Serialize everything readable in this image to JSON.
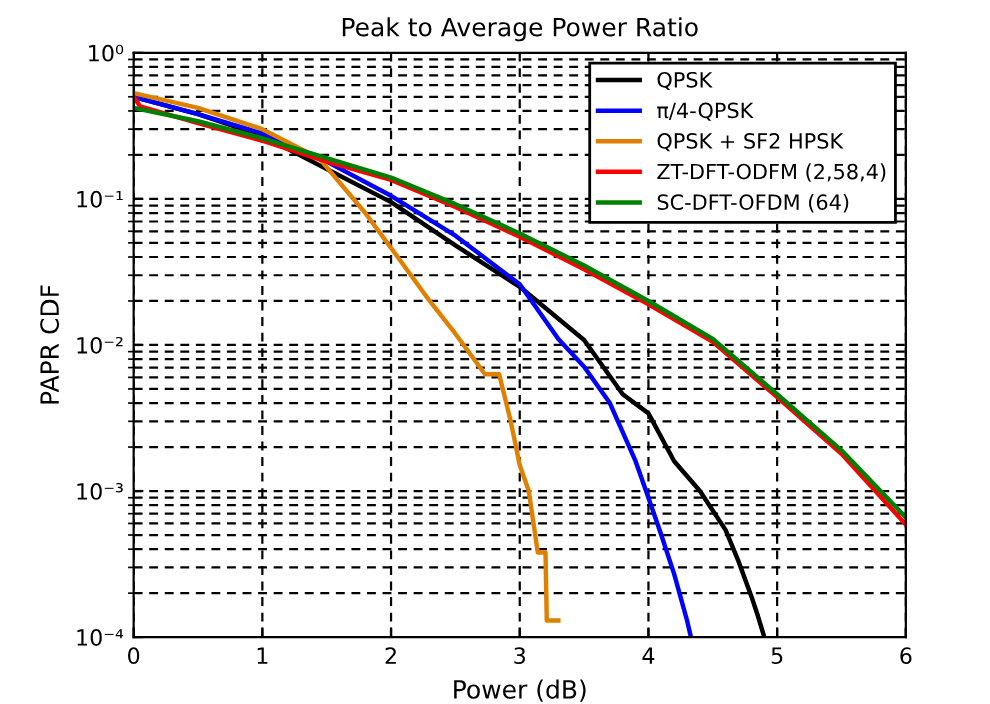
{
  "chart_data": {
    "type": "line",
    "title": "Peak to Average Power Ratio",
    "xlabel": "Power (dB)",
    "ylabel": "PAPR CDF",
    "log": "y",
    "grid": true,
    "legend": "top right",
    "xlim": [
      0,
      6
    ],
    "xticks": [
      0,
      1,
      2,
      3,
      4,
      5,
      6
    ],
    "ylim": [
      0.0001,
      1
    ],
    "yticks": [
      {
        "value": 0.0001,
        "label": "10⁻⁴"
      },
      {
        "value": 0.001,
        "label": "10⁻³"
      },
      {
        "value": 0.01,
        "label": "10⁻²"
      },
      {
        "value": 0.1,
        "label": "10⁻¹"
      },
      {
        "value": 1,
        "label": "10⁰"
      }
    ],
    "series": [
      {
        "name": "QPSK",
        "color": "#000000",
        "x": [
          0,
          0.5,
          1,
          1.5,
          2,
          2.5,
          3,
          3.5,
          3.8,
          4,
          4.2,
          4.4,
          4.6,
          4.7,
          4.8,
          4.85,
          4.9
        ],
        "values": [
          0.5,
          0.38,
          0.27,
          0.16,
          0.095,
          0.048,
          0.025,
          0.0108,
          0.0046,
          0.0034,
          0.0016,
          0.001,
          0.00054,
          0.00033,
          0.00019,
          0.00014,
          0.0001
        ]
      },
      {
        "name": "π/4-QPSK",
        "color": "#0000ff",
        "x": [
          0,
          0.5,
          1,
          1.5,
          2,
          2.5,
          3,
          3.3,
          3.5,
          3.7,
          3.9,
          4,
          4.1,
          4.2,
          4.3,
          4.33
        ],
        "values": [
          0.5,
          0.38,
          0.28,
          0.18,
          0.105,
          0.056,
          0.026,
          0.011,
          0.0071,
          0.004,
          0.0016,
          0.0009,
          0.0005,
          0.00027,
          0.00013,
          0.0001
        ]
      },
      {
        "name": "QPSK + SF2 HPSK",
        "color": "#e08000",
        "x": [
          0,
          0.5,
          1,
          1.44,
          1.8,
          2.07,
          2.3,
          2.48,
          2.73,
          2.84,
          2.93,
          3.0,
          3.07,
          3.14,
          3.2,
          3.21,
          3.3
        ],
        "values": [
          0.53,
          0.42,
          0.3,
          0.19,
          0.08,
          0.038,
          0.02,
          0.0126,
          0.0063,
          0.0063,
          0.003,
          0.0015,
          0.001,
          0.00038,
          0.00038,
          0.00013,
          0.00013
        ]
      },
      {
        "name": "ZT-DFT-ODFM (2,58,4)",
        "color": "#ff0000",
        "x": [
          0,
          0.05,
          0.5,
          1,
          1.5,
          2,
          2.5,
          3,
          3.5,
          4,
          4.5,
          5,
          5.5,
          6
        ],
        "values": [
          0.5,
          0.43,
          0.33,
          0.25,
          0.18,
          0.135,
          0.088,
          0.055,
          0.033,
          0.019,
          0.0105,
          0.0044,
          0.0018,
          0.00059
        ]
      },
      {
        "name": "SC-DFT-OFDM (64)",
        "color": "#008000",
        "x": [
          0,
          0.5,
          1,
          1.5,
          2,
          2.5,
          3,
          3.5,
          4,
          4.5,
          5,
          5.5,
          6
        ],
        "values": [
          0.42,
          0.34,
          0.26,
          0.19,
          0.14,
          0.092,
          0.058,
          0.035,
          0.02,
          0.011,
          0.0046,
          0.0019,
          0.00066
        ]
      }
    ]
  }
}
